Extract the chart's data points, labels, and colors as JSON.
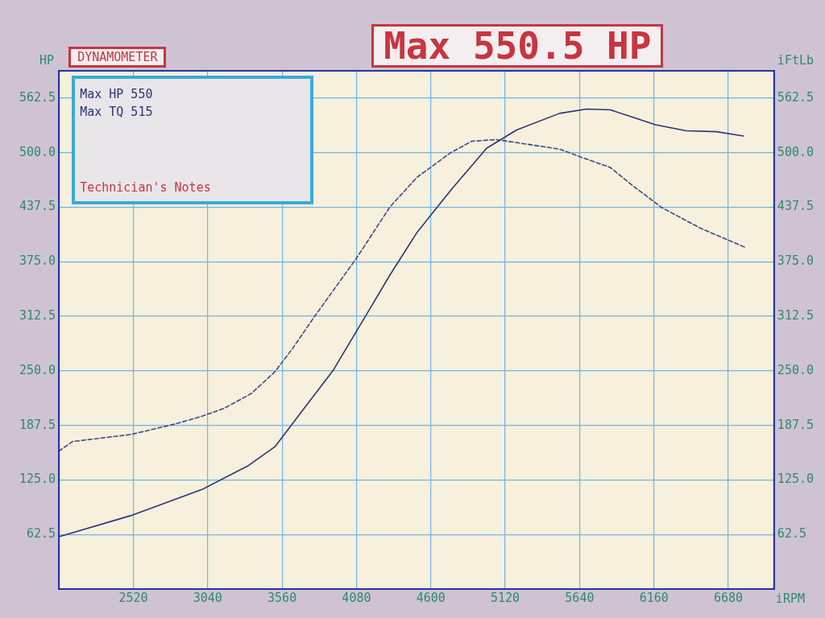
{
  "chart_data": {
    "type": "line",
    "xlabel": "iRPM",
    "ylabel": "HP",
    "y2label": "iFtLb",
    "annotations": [
      "DYNAMOMETER",
      "Max 550.5 HP",
      "Max HP 550",
      "Max TQ 515",
      "Technician's Notes"
    ],
    "xlim": [
      2000,
      7000
    ],
    "xticks": [
      2520,
      3040,
      3560,
      4080,
      4600,
      5120,
      5640,
      6160,
      6680
    ],
    "ylim": [
      0,
      593.75
    ],
    "yticks": [
      62.5,
      {
        "value": 125,
        "label": "125.0"
      },
      187.5,
      {
        "value": 250,
        "label": "250.0"
      },
      312.5,
      {
        "value": 375,
        "label": "375.0"
      },
      437.5,
      {
        "value": 500,
        "label": "500.0"
      },
      562.5
    ],
    "y2lim": [
      0,
      593.75
    ],
    "y2ticks": [
      62.5,
      {
        "value": 125,
        "label": "125.0"
      },
      187.5,
      {
        "value": 250,
        "label": "250.0"
      },
      312.5,
      {
        "value": 375,
        "label": "375.0"
      },
      437.5,
      {
        "value": 500,
        "label": "500.0"
      },
      562.5
    ],
    "grid": true,
    "legend": false,
    "marker": "none",
    "series": [
      {
        "color": "#2b3577",
        "line_style": "solid",
        "x": [
          2000,
          2500,
          3000,
          3320,
          3510,
          3700,
          3915,
          4170,
          4315,
          4505,
          4740,
          4990,
          5200,
          5500,
          5690,
          5855,
          6005,
          6170,
          6385,
          6595,
          6785
        ],
        "values": [
          60,
          84,
          114,
          141,
          163,
          204,
          250,
          320,
          360,
          409,
          457,
          505,
          526,
          545,
          550,
          549,
          541,
          532,
          525,
          524,
          519
        ]
      },
      {
        "color": "#3b4a8c",
        "line_style": "dashed",
        "axis": "y2",
        "x": [
          2000,
          2095,
          2500,
          2810,
          3000,
          3155,
          3345,
          3510,
          3635,
          3790,
          4080,
          4315,
          4505,
          4740,
          4885,
          5055,
          5220,
          5500,
          5665,
          5855,
          6005,
          6215,
          6490,
          6805
        ],
        "values": [
          158,
          169,
          177,
          189,
          198,
          207,
          224,
          249,
          276,
          313,
          379,
          438,
          472,
          500,
          513,
          515,
          511,
          504,
          494,
          483,
          463,
          437,
          413,
          391
        ]
      }
    ]
  }
}
